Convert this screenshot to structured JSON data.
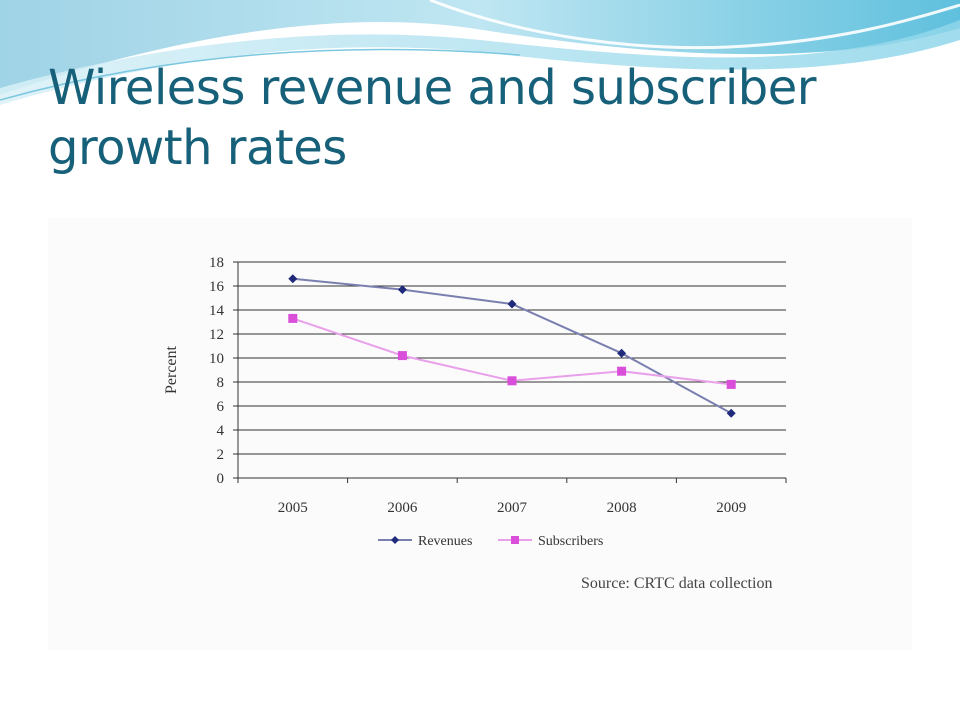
{
  "slide": {
    "title": "Wireless revenue and subscriber growth rates"
  },
  "colors": {
    "title": "#17607a",
    "revenues": "#1f2a7a",
    "subscribers": "#d94fd9",
    "revenues_line": "#7a7fb0",
    "subscribers_line": "#e8a0ea"
  },
  "chart_data": {
    "type": "line",
    "categories": [
      "2005",
      "2006",
      "2007",
      "2008",
      "2009"
    ],
    "series": [
      {
        "name": "Revenues",
        "marker": "diamond",
        "values": [
          16.6,
          15.7,
          14.5,
          10.4,
          5.4
        ]
      },
      {
        "name": "Subscribers",
        "marker": "square",
        "values": [
          13.3,
          10.2,
          8.1,
          8.9,
          7.8
        ]
      }
    ],
    "ylabel": "Percent",
    "xlabel": "",
    "ylim": [
      0,
      18
    ],
    "yticks": [
      0,
      2,
      4,
      6,
      8,
      10,
      12,
      14,
      16,
      18
    ],
    "grid": true,
    "legend": "bottom",
    "source": "Source: CRTC data collection"
  }
}
